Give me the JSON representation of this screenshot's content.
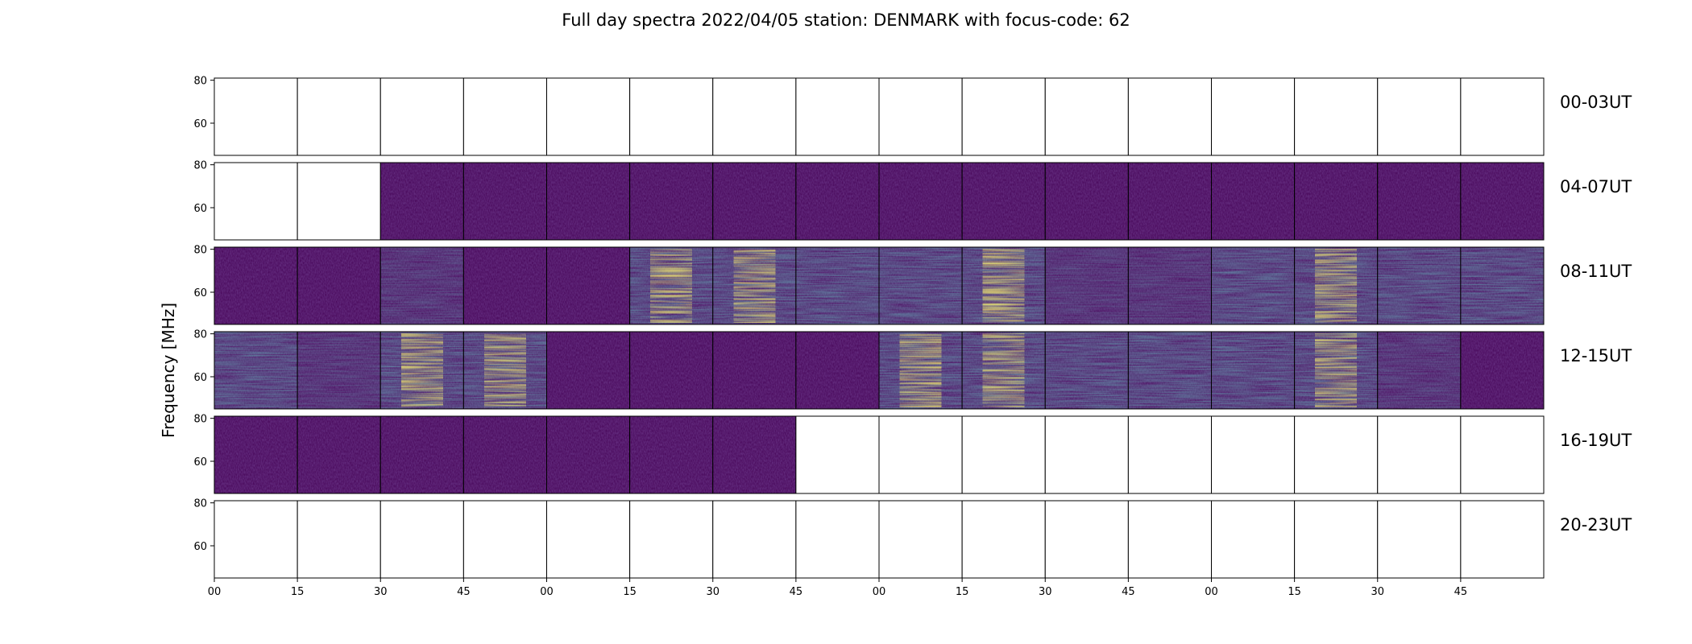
{
  "chart_data": {
    "type": "heatmap",
    "title": "Full day spectra 2022/04/05 station: DENMARK with focus-code: 62",
    "ylabel": "Frequency [MHz]",
    "ylim": [
      45,
      81
    ],
    "y_ticks": [
      "80",
      "60"
    ],
    "x_ticks": [
      "00",
      "15",
      "30",
      "45",
      "00",
      "15",
      "30",
      "45",
      "00",
      "15",
      "30",
      "45",
      "00",
      "15",
      "30",
      "45"
    ],
    "panels_per_row": 16,
    "panel_minutes": 15,
    "colormap": "viridis",
    "colors": {
      "empty": "#ffffff",
      "viridis_low": "#440154",
      "viridis_mid": "#21918c",
      "viridis_high": "#fde725"
    },
    "rows": [
      {
        "label": "00-03UT",
        "activity": [
          -1,
          -1,
          -1,
          -1,
          -1,
          -1,
          -1,
          -1,
          -1,
          -1,
          -1,
          -1,
          -1,
          -1,
          -1,
          -1
        ]
      },
      {
        "label": "04-07UT",
        "activity": [
          -1,
          -1,
          0,
          0,
          0,
          0,
          0,
          0,
          0,
          0,
          0,
          0,
          0,
          0,
          0,
          0
        ]
      },
      {
        "label": "08-11UT",
        "activity": [
          0,
          0,
          1,
          0,
          0,
          3,
          3,
          2,
          2,
          3,
          1,
          1,
          2,
          3,
          2,
          2
        ]
      },
      {
        "label": "12-15UT",
        "activity": [
          2,
          1,
          3,
          3,
          0,
          0,
          0,
          0,
          3,
          3,
          2,
          2,
          2,
          3,
          1,
          0
        ]
      },
      {
        "label": "16-19UT",
        "activity": [
          0,
          0,
          0,
          0,
          0,
          0,
          0,
          -1,
          -1,
          -1,
          -1,
          -1,
          -1,
          -1,
          -1,
          -1
        ]
      },
      {
        "label": "20-23UT",
        "activity": [
          -1,
          -1,
          -1,
          -1,
          -1,
          -1,
          -1,
          -1,
          -1,
          -1,
          -1,
          -1,
          -1,
          -1,
          -1,
          -1
        ]
      }
    ]
  }
}
